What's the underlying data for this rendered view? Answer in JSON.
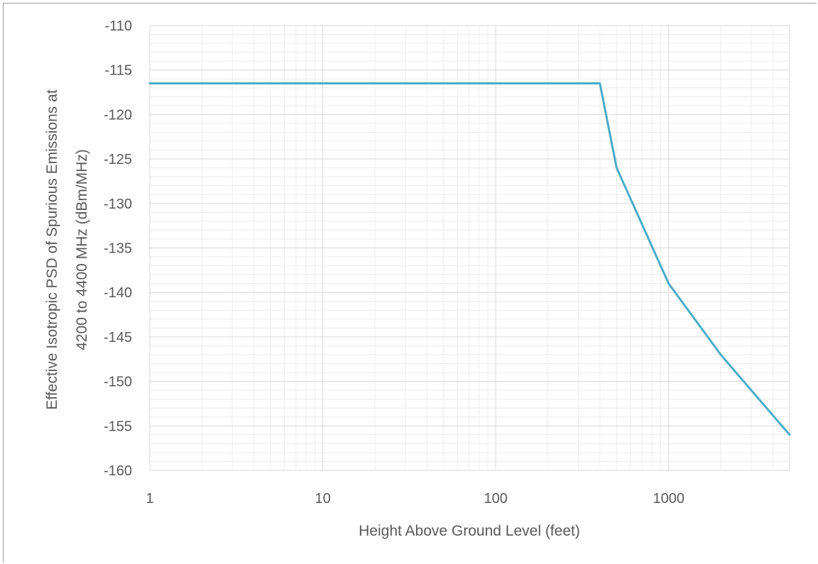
{
  "chart_data": {
    "type": "line",
    "title": "",
    "xlabel": "Height Above Ground Level (feet)",
    "ylabel_line1": "Effective Isotropic PSD of Spurious Emissions at",
    "ylabel_line2": "4200 to 4400 MHz (dBm/MHz)",
    "x_scale": "log",
    "xlim": [
      1,
      5000
    ],
    "ylim": [
      -160,
      -110
    ],
    "x_ticks": [
      1,
      10,
      100,
      1000
    ],
    "x_tick_labels": [
      "1",
      "10",
      "100",
      "1000"
    ],
    "y_ticks": [
      -110,
      -115,
      -120,
      -125,
      -130,
      -135,
      -140,
      -145,
      -150,
      -155,
      -160
    ],
    "y_tick_labels": [
      "-110",
      "-115",
      "-120",
      "-125",
      "-130",
      "-135",
      "-140",
      "-145",
      "-150",
      "-155",
      "-160"
    ],
    "grid": true,
    "legend": "none",
    "series": [
      {
        "color": "#4bacc6",
        "x": [
          1,
          400,
          500,
          1000,
          2000,
          3000,
          5000
        ],
        "y": [
          -116.5,
          -116.5,
          -126,
          -139,
          -147,
          -151,
          -156
        ]
      }
    ]
  }
}
